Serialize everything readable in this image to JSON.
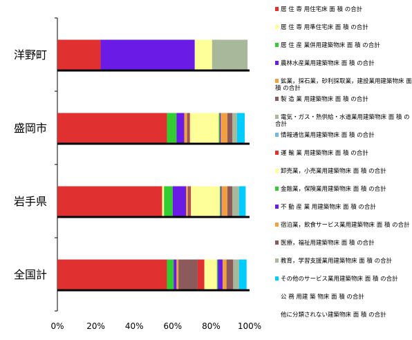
{
  "chart_data": {
    "type": "bar",
    "orientation": "horizontal",
    "stacked": "percent",
    "categories": [
      "洋野町",
      "盛岡市",
      "岩手県",
      "全国計"
    ],
    "xlim": [
      0,
      100
    ],
    "xticks": [
      "0%",
      "20%",
      "40%",
      "60%",
      "80%",
      "100%"
    ],
    "grid": false,
    "legend_position": "right",
    "series": [
      {
        "name": "居 住 専 用住宅床 面 積 の合計",
        "color": "#e03030",
        "values": [
          22.5,
          57.0,
          54.5,
          57.0
        ]
      },
      {
        "name": "居 住 専 用準住宅床 面 積 の合計",
        "color": "#ffff99",
        "values": [
          0,
          0,
          1.0,
          0
        ]
      },
      {
        "name": "居 住 産 業併用建築物床 面 積 の合計",
        "color": "#33cc33",
        "values": [
          0,
          5.0,
          4.5,
          3.5
        ]
      },
      {
        "name": "農林水産業用建築物床 面 積 の合計",
        "color": "#6a1be6",
        "values": [
          49.0,
          4.0,
          7.0,
          1.5
        ]
      },
      {
        "name": "鉱業，採石業，砂利採取業，建設業用建築物床 面 積 の合計",
        "color": "#f0a040",
        "values": [
          0,
          1.5,
          1.0,
          1.0
        ]
      },
      {
        "name": "製 造 業 用建築物床 面 積 の合計",
        "color": "#8c5a5a",
        "values": [
          0,
          1.0,
          1.0,
          10.0
        ]
      },
      {
        "name": "電気・ガス・熱供給・水道業用建築物床 面 積 の合計",
        "color": "#a8b89a",
        "values": [
          0,
          0,
          0,
          0
        ]
      },
      {
        "name": "情報通信業用建築物床 面 積 の合計",
        "color": "#70b8e0",
        "values": [
          0,
          0,
          0,
          0
        ]
      },
      {
        "name": "運 輸 業 用建築物床 面 積 の合計",
        "color": "#e03030",
        "values": [
          0,
          0.5,
          0.5,
          3.5
        ]
      },
      {
        "name": "卸売業，小売業用建築物床 面 積 の合計",
        "color": "#ffff99",
        "values": [
          9.0,
          15.0,
          15.0,
          6.5
        ]
      },
      {
        "name": "金融業，保険業用建築物床 面 積 の合計",
        "color": "#33cc33",
        "values": [
          0,
          0.5,
          0.5,
          0.5
        ]
      },
      {
        "name": "不 動 産 業 用建築物床 面 積 の合計",
        "color": "#6a1be6",
        "values": [
          0,
          0.5,
          0.5,
          2.5
        ]
      },
      {
        "name": "宿泊業，飲食サービス業用建築物床 面 積 の合計",
        "color": "#f0a040",
        "values": [
          0,
          3.5,
          3.0,
          2.0
        ]
      },
      {
        "name": "医療，福祉用建築物床 面 積 の合計",
        "color": "#8c5a5a",
        "values": [
          0,
          2.5,
          2.5,
          3.5
        ]
      },
      {
        "name": "教育，学習支援業用建築物床 面 積 の合計",
        "color": "#a8b89a",
        "values": [
          18.5,
          2.5,
          3.5,
          3.0
        ]
      },
      {
        "name": "その他のサービス業用建築物床 面 積 の合計",
        "color": "#00ccff",
        "values": [
          0,
          4.0,
          3.5,
          4.0
        ]
      },
      {
        "name": "公 務 用建 築 物床 面 積 の合計",
        "color": "#ffffff",
        "values": [
          0,
          1.5,
          2.0,
          1.5
        ]
      },
      {
        "name": "他に分類されない建築物床 面 積 の合計",
        "color": "#ffffff",
        "values": [
          1.0,
          0.5,
          0.5,
          0.5
        ]
      }
    ]
  }
}
